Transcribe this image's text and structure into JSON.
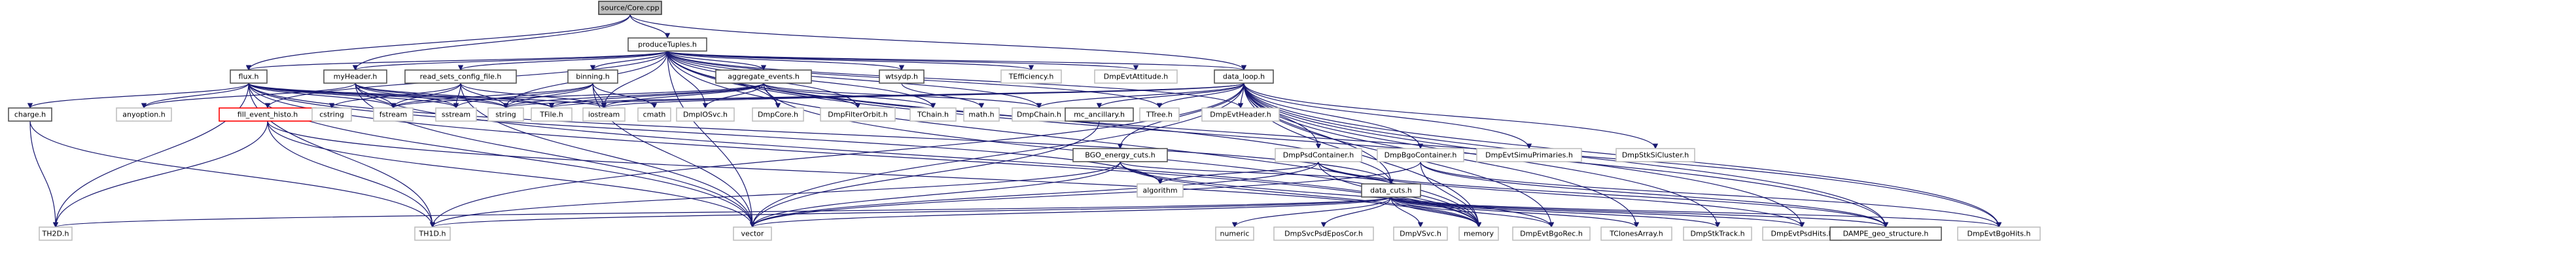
{
  "root": "source/Core.cpp",
  "nodes": [
    {
      "id": "core",
      "label": "source/Core.cpp",
      "kind": "root"
    },
    {
      "id": "produce",
      "label": "produceTuples.h",
      "kind": "documented"
    },
    {
      "id": "flux",
      "label": "flux.h",
      "kind": "documented"
    },
    {
      "id": "myheader",
      "label": "myHeader.h",
      "kind": "documented"
    },
    {
      "id": "readsets",
      "label": "read_sets_config_file.h",
      "kind": "documented"
    },
    {
      "id": "binning",
      "label": "binning.h",
      "kind": "documented"
    },
    {
      "id": "aggregate",
      "label": "aggregate_events.h",
      "kind": "documented"
    },
    {
      "id": "wtsydp",
      "label": "wtsydp.h",
      "kind": "documented"
    },
    {
      "id": "tefficiency",
      "label": "TEfficiency.h",
      "kind": "system"
    },
    {
      "id": "dmpevtattitude",
      "label": "DmpEvtAttitude.h",
      "kind": "system"
    },
    {
      "id": "dataloop",
      "label": "data_loop.h",
      "kind": "documented"
    },
    {
      "id": "charge",
      "label": "charge.h",
      "kind": "documented"
    },
    {
      "id": "anyoption",
      "label": "anyoption.h",
      "kind": "system"
    },
    {
      "id": "fillevent",
      "label": "fill_event_histo.h",
      "kind": "red"
    },
    {
      "id": "cstring",
      "label": "cstring",
      "kind": "system"
    },
    {
      "id": "fstream",
      "label": "fstream",
      "kind": "system"
    },
    {
      "id": "sstream",
      "label": "sstream",
      "kind": "system"
    },
    {
      "id": "string",
      "label": "string",
      "kind": "system"
    },
    {
      "id": "tfile",
      "label": "TFile.h",
      "kind": "system"
    },
    {
      "id": "iostream",
      "label": "iostream",
      "kind": "system"
    },
    {
      "id": "cmath",
      "label": "cmath",
      "kind": "system"
    },
    {
      "id": "dmpiosvc",
      "label": "DmpIOSvc.h",
      "kind": "system"
    },
    {
      "id": "dmpcore",
      "label": "DmpCore.h",
      "kind": "system"
    },
    {
      "id": "dmpfilterorbit",
      "label": "DmpFilterOrbit.h",
      "kind": "system"
    },
    {
      "id": "tchain",
      "label": "TChain.h",
      "kind": "system"
    },
    {
      "id": "mathh",
      "label": "math.h",
      "kind": "system"
    },
    {
      "id": "dmpchain",
      "label": "DmpChain.h",
      "kind": "system"
    },
    {
      "id": "mcancillary",
      "label": "mc_ancillary.h",
      "kind": "documented"
    },
    {
      "id": "ttree",
      "label": "TTree.h",
      "kind": "system"
    },
    {
      "id": "dmpevtheader",
      "label": "DmpEvtHeader.h",
      "kind": "system"
    },
    {
      "id": "bgoenergy",
      "label": "BGO_energy_cuts.h",
      "kind": "documented"
    },
    {
      "id": "dmppsdcontainer",
      "label": "DmpPsdContainer.h",
      "kind": "system"
    },
    {
      "id": "dmpbgocontainer",
      "label": "DmpBgoContainer.h",
      "kind": "system"
    },
    {
      "id": "dmpevtsimuprimaries",
      "label": "DmpEvtSimuPrimaries.h",
      "kind": "system"
    },
    {
      "id": "dmpstksicluster",
      "label": "DmpStkSiCluster.h",
      "kind": "system"
    },
    {
      "id": "algorithm",
      "label": "algorithm",
      "kind": "system"
    },
    {
      "id": "datacuts",
      "label": "data_cuts.h",
      "kind": "documented"
    },
    {
      "id": "th2d",
      "label": "TH2D.h",
      "kind": "system"
    },
    {
      "id": "th1d",
      "label": "TH1D.h",
      "kind": "system"
    },
    {
      "id": "vector",
      "label": "vector",
      "kind": "system"
    },
    {
      "id": "numeric",
      "label": "numeric",
      "kind": "system"
    },
    {
      "id": "dmpsvcpsdeposcor",
      "label": "DmpSvcPsdEposCor.h",
      "kind": "system"
    },
    {
      "id": "dmpvsvc",
      "label": "DmpVSvc.h",
      "kind": "system"
    },
    {
      "id": "memory",
      "label": "memory",
      "kind": "system"
    },
    {
      "id": "dmpevtbgorec",
      "label": "DmpEvtBgoRec.h",
      "kind": "system"
    },
    {
      "id": "tclonesarray",
      "label": "TClonesArray.h",
      "kind": "system"
    },
    {
      "id": "dmpstktrack",
      "label": "DmpStkTrack.h",
      "kind": "system"
    },
    {
      "id": "dmpevtpsdhits",
      "label": "DmpEvtPsdHits.h",
      "kind": "system"
    },
    {
      "id": "dampegeo",
      "label": "DAMPE_geo_structure.h",
      "kind": "documented"
    },
    {
      "id": "dmpevtbgohits",
      "label": "DmpEvtBgoHits.h",
      "kind": "system"
    }
  ],
  "edges": [
    [
      "core",
      "produce"
    ],
    [
      "core",
      "flux"
    ],
    [
      "core",
      "myheader"
    ],
    [
      "core",
      "dataloop"
    ],
    [
      "produce",
      "flux"
    ],
    [
      "produce",
      "myheader"
    ],
    [
      "produce",
      "readsets"
    ],
    [
      "produce",
      "binning"
    ],
    [
      "produce",
      "aggregate"
    ],
    [
      "produce",
      "wtsydp"
    ],
    [
      "produce",
      "tefficiency"
    ],
    [
      "produce",
      "dmpevtattitude"
    ],
    [
      "produce",
      "dataloop"
    ],
    [
      "produce",
      "fillevent"
    ],
    [
      "produce",
      "string"
    ],
    [
      "produce",
      "iostream"
    ],
    [
      "produce",
      "dmpiosvc"
    ],
    [
      "produce",
      "dmpcore"
    ],
    [
      "produce",
      "dmpfilterorbit"
    ],
    [
      "produce",
      "tchain"
    ],
    [
      "produce",
      "dmpchain"
    ],
    [
      "produce",
      "ttree"
    ],
    [
      "produce",
      "dmpevtheader"
    ],
    [
      "produce",
      "datacuts"
    ],
    [
      "produce",
      "vector"
    ],
    [
      "produce",
      "memory"
    ],
    [
      "produce",
      "dampegeo"
    ],
    [
      "produce",
      "dmpevtbgohits"
    ],
    [
      "flux",
      "charge"
    ],
    [
      "flux",
      "anyoption"
    ],
    [
      "flux",
      "fstream"
    ],
    [
      "flux",
      "sstream"
    ],
    [
      "flux",
      "string"
    ],
    [
      "flux",
      "tfile"
    ],
    [
      "flux",
      "iostream"
    ],
    [
      "flux",
      "th2d"
    ],
    [
      "flux",
      "th1d"
    ],
    [
      "flux",
      "vector"
    ],
    [
      "flux",
      "algorithm"
    ],
    [
      "flux",
      "datacuts"
    ],
    [
      "flux",
      "memory"
    ],
    [
      "myheader",
      "anyoption"
    ],
    [
      "myheader",
      "fstream"
    ],
    [
      "myheader",
      "sstream"
    ],
    [
      "myheader",
      "string"
    ],
    [
      "myheader",
      "tfile"
    ],
    [
      "myheader",
      "vector"
    ],
    [
      "myheader",
      "memory"
    ],
    [
      "readsets",
      "cstring"
    ],
    [
      "readsets",
      "fstream"
    ],
    [
      "readsets",
      "sstream"
    ],
    [
      "readsets",
      "string"
    ],
    [
      "readsets",
      "iostream"
    ],
    [
      "readsets",
      "vector"
    ],
    [
      "binning",
      "fstream"
    ],
    [
      "binning",
      "sstream"
    ],
    [
      "binning",
      "string"
    ],
    [
      "binning",
      "iostream"
    ],
    [
      "binning",
      "cmath"
    ],
    [
      "binning",
      "vector"
    ],
    [
      "aggregate",
      "fstream"
    ],
    [
      "aggregate",
      "string"
    ],
    [
      "aggregate",
      "tfile"
    ],
    [
      "aggregate",
      "iostream"
    ],
    [
      "aggregate",
      "dmpiosvc"
    ],
    [
      "aggregate",
      "dmpcore"
    ],
    [
      "aggregate",
      "dmpfilterorbit"
    ],
    [
      "aggregate",
      "tchain"
    ],
    [
      "aggregate",
      "dmpchain"
    ],
    [
      "aggregate",
      "memory"
    ],
    [
      "wtsydp",
      "mathh"
    ],
    [
      "dataloop",
      "string"
    ],
    [
      "dataloop",
      "tfile"
    ],
    [
      "dataloop",
      "iostream"
    ],
    [
      "dataloop",
      "dmpchain"
    ],
    [
      "dataloop",
      "mcancillary"
    ],
    [
      "dataloop",
      "ttree"
    ],
    [
      "dataloop",
      "dmpevtheader"
    ],
    [
      "dataloop",
      "bgoenergy"
    ],
    [
      "dataloop",
      "dmppsdcontainer"
    ],
    [
      "dataloop",
      "dmpbgocontainer"
    ],
    [
      "dataloop",
      "dmpevtsimuprimaries"
    ],
    [
      "dataloop",
      "dmpstksicluster"
    ],
    [
      "dataloop",
      "datacuts"
    ],
    [
      "dataloop",
      "vector"
    ],
    [
      "dataloop",
      "memory"
    ],
    [
      "dataloop",
      "dmpevtbgorec"
    ],
    [
      "dataloop",
      "dampegeo"
    ],
    [
      "dataloop",
      "dmpevtbgohits"
    ],
    [
      "dataloop",
      "dmpevtpsdhits"
    ],
    [
      "dataloop",
      "dmpstktrack"
    ],
    [
      "dataloop",
      "tclonesarray"
    ],
    [
      "dataloop",
      "th1d"
    ],
    [
      "charge",
      "th2d"
    ],
    [
      "charge",
      "th1d"
    ],
    [
      "fillevent",
      "th2d"
    ],
    [
      "fillevent",
      "th1d"
    ],
    [
      "fillevent",
      "vector"
    ],
    [
      "fillevent",
      "memory"
    ],
    [
      "mcancillary",
      "vector"
    ],
    [
      "bgoenergy",
      "algorithm"
    ],
    [
      "bgoenergy",
      "datacuts"
    ],
    [
      "bgoenergy",
      "vector"
    ],
    [
      "bgoenergy",
      "memory"
    ],
    [
      "bgoenergy",
      "dmpevtbgorec"
    ],
    [
      "bgoenergy",
      "th1d"
    ],
    [
      "dmppsdcontainer",
      "algorithm"
    ],
    [
      "dmppsdcontainer",
      "dampegeo"
    ],
    [
      "dmppsdcontainer",
      "memory"
    ],
    [
      "dmppsdcontainer",
      "dmpevtpsdhits"
    ],
    [
      "dmppsdcontainer",
      "vector"
    ],
    [
      "dmpbgocontainer",
      "dampegeo"
    ],
    [
      "dmpbgocontainer",
      "memory"
    ],
    [
      "dmpbgocontainer",
      "dmpevtbgohits"
    ],
    [
      "dmpbgocontainer",
      "vector"
    ],
    [
      "datacuts",
      "th2d"
    ],
    [
      "datacuts",
      "th1d"
    ],
    [
      "datacuts",
      "vector"
    ],
    [
      "datacuts",
      "numeric"
    ],
    [
      "datacuts",
      "dmpsvcpsdeposcor"
    ],
    [
      "datacuts",
      "dmpvsvc"
    ],
    [
      "datacuts",
      "memory"
    ],
    [
      "datacuts",
      "dmpevtbgorec"
    ],
    [
      "datacuts",
      "tclonesarray"
    ],
    [
      "datacuts",
      "dmpstktrack"
    ],
    [
      "datacuts",
      "dmpevtpsdhits"
    ],
    [
      "datacuts",
      "dampegeo"
    ],
    [
      "datacuts",
      "dmpevtbgohits"
    ]
  ]
}
